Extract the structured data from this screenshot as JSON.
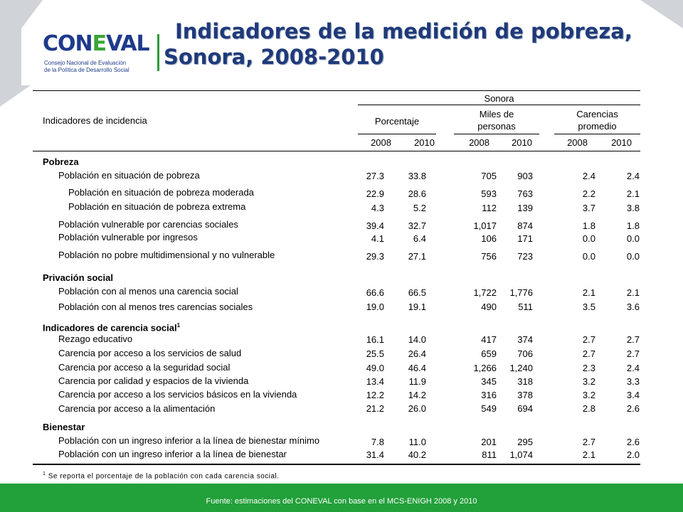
{
  "header": {
    "logo_word_a": "CON",
    "logo_word_b": "E",
    "logo_word_c": "VAL",
    "logo_sub_1": "Consejo Nacional de Evaluación",
    "logo_sub_2": "de la Política de Desarrollo Social",
    "title_line1": "Indicadores de la medición de pobreza,",
    "title_line2": "Sonora, 2008-2010"
  },
  "table": {
    "region": "Sonora",
    "row_header": "Indicadores de incidencia",
    "groups": [
      "Porcentaje",
      "Miles de",
      "personas",
      "Carencias",
      "promedio"
    ],
    "years": [
      "2008",
      "2010",
      "2008",
      "2010",
      "2008",
      "2010"
    ],
    "sections": [
      {
        "title": "Pobreza",
        "superscript": ""
      },
      {
        "title": "Privación social",
        "superscript": ""
      },
      {
        "title": "Indicadores de carencia social",
        "superscript": "1"
      },
      {
        "title": "Bienestar",
        "superscript": ""
      }
    ],
    "rows": [
      {
        "label": "Población en situación de pobreza",
        "v": [
          "27.3",
          "33.8",
          "705",
          "903",
          "2.4",
          "2.4"
        ]
      },
      {
        "label": "Población en situación de pobreza moderada",
        "v": [
          "22.9",
          "28.6",
          "593",
          "763",
          "2.2",
          "2.1"
        ]
      },
      {
        "label": "Población en situación de pobreza extrema",
        "v": [
          "4.3",
          "5.2",
          "112",
          "139",
          "3.7",
          "3.8"
        ]
      },
      {
        "label": "Población vulnerable por carencias sociales",
        "v": [
          "39.4",
          "32.7",
          "1,017",
          "874",
          "1.8",
          "1.8"
        ]
      },
      {
        "label": "Población vulnerable por ingresos",
        "v": [
          "4.1",
          "6.4",
          "106",
          "171",
          "0.0",
          "0.0"
        ]
      },
      {
        "label": "Población no pobre multidimensional y no vulnerable",
        "v": [
          "29.3",
          "27.1",
          "756",
          "723",
          "0.0",
          "0.0"
        ]
      },
      {
        "label": "Población con al menos una carencia social",
        "v": [
          "66.6",
          "66.5",
          "1,722",
          "1,776",
          "2.1",
          "2.1"
        ]
      },
      {
        "label": "Población con al menos tres carencias sociales",
        "v": [
          "19.0",
          "19.1",
          "490",
          "511",
          "3.5",
          "3.6"
        ]
      },
      {
        "label": "Rezago educativo",
        "v": [
          "16.1",
          "14.0",
          "417",
          "374",
          "2.7",
          "2.7"
        ]
      },
      {
        "label": "Carencia por acceso a los servicios de salud",
        "v": [
          "25.5",
          "26.4",
          "659",
          "706",
          "2.7",
          "2.7"
        ]
      },
      {
        "label": "Carencia por acceso a la seguridad social",
        "v": [
          "49.0",
          "46.4",
          "1,266",
          "1,240",
          "2.3",
          "2.4"
        ]
      },
      {
        "label": "Carencia por calidad y espacios de la vivienda",
        "v": [
          "13.4",
          "11.9",
          "345",
          "318",
          "3.2",
          "3.3"
        ]
      },
      {
        "label": "Carencia por acceso a los servicios básicos en la vivienda",
        "v": [
          "12.2",
          "14.2",
          "316",
          "378",
          "3.2",
          "3.4"
        ]
      },
      {
        "label": "Carencia por acceso a la alimentación",
        "v": [
          "21.2",
          "26.0",
          "549",
          "694",
          "2.8",
          "2.6"
        ]
      },
      {
        "label": "Población con un ingreso inferior a la línea de bienestar mínimo",
        "v": [
          "7.8",
          "11.0",
          "201",
          "295",
          "2.7",
          "2.6"
        ]
      },
      {
        "label": "Población con un ingreso inferior a la línea de bienestar",
        "v": [
          "31.4",
          "40.2",
          "811",
          "1,074",
          "2.1",
          "2.0"
        ]
      }
    ],
    "footnote_mark": "1",
    "footnote": "Se reporta el porcentaje de la población con cada carencia social."
  },
  "footer": {
    "source": "Fuente: estimaciones del CONEVAL con base en el MCS-ENIGH 2008 y 2010"
  }
}
